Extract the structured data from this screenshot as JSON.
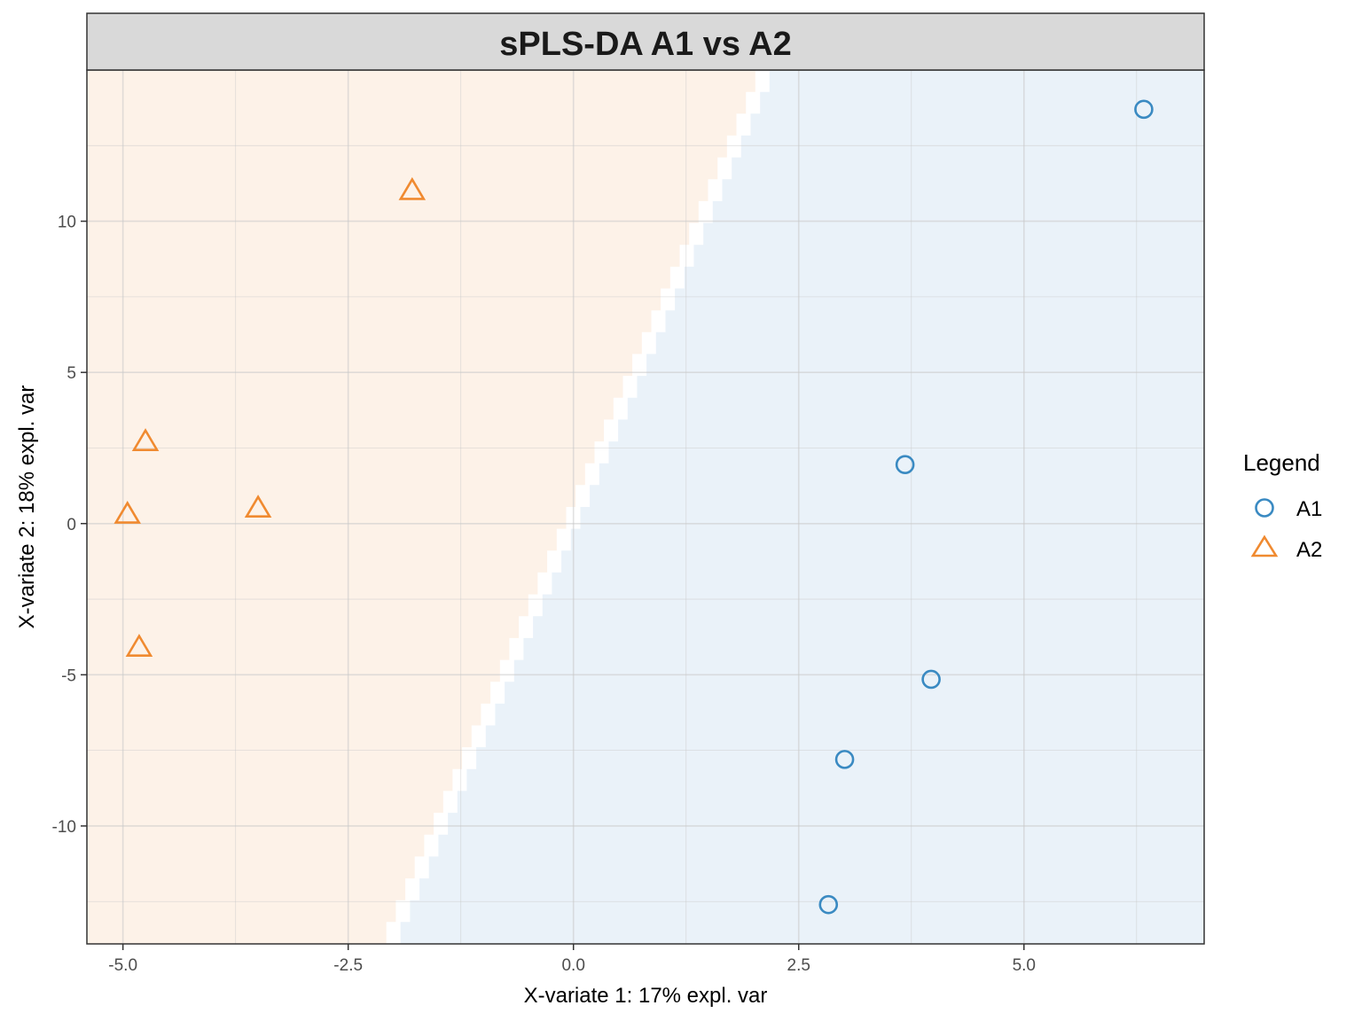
{
  "chart_data": {
    "type": "scatter",
    "title": "sPLS-DA A1 vs A2",
    "xlabel": "X-variate 1: 17% expl. var",
    "ylabel": "X-variate 2: 18% expl. var",
    "xlim": [
      -5.4,
      7.0
    ],
    "ylim": [
      -13.9,
      15.0
    ],
    "xticks": [
      -5.0,
      -2.5,
      0.0,
      2.5,
      5.0
    ],
    "xtick_labels": [
      "-5.0",
      "-2.5",
      "0.0",
      "2.5",
      "5.0"
    ],
    "yticks": [
      -10,
      -5,
      0,
      5,
      10
    ],
    "ytick_labels": [
      "-10",
      "-5",
      "0",
      "5",
      "10"
    ],
    "grid": true,
    "legend": {
      "title": "Legend",
      "placement": "right"
    },
    "series": [
      {
        "name": "A1",
        "marker": "circle",
        "color": "#3A8AC2",
        "region_color": "#EAF2F9",
        "points": [
          {
            "x": 6.33,
            "y": 13.7
          },
          {
            "x": 3.68,
            "y": 1.95
          },
          {
            "x": 3.97,
            "y": -5.15
          },
          {
            "x": 3.01,
            "y": -7.8
          },
          {
            "x": 2.83,
            "y": -12.6
          }
        ]
      },
      {
        "name": "A2",
        "marker": "triangle",
        "color": "#F08A30",
        "region_color": "#FDF2E8",
        "points": [
          {
            "x": -1.79,
            "y": 11.0
          },
          {
            "x": -4.75,
            "y": 2.7
          },
          {
            "x": -4.95,
            "y": 0.3
          },
          {
            "x": -3.5,
            "y": 0.5
          },
          {
            "x": -4.82,
            "y": -4.1
          }
        ]
      }
    ],
    "decision_boundary": {
      "x_at_ylim_min": -2.05,
      "x_at_ylim_max": 2.15
    }
  }
}
